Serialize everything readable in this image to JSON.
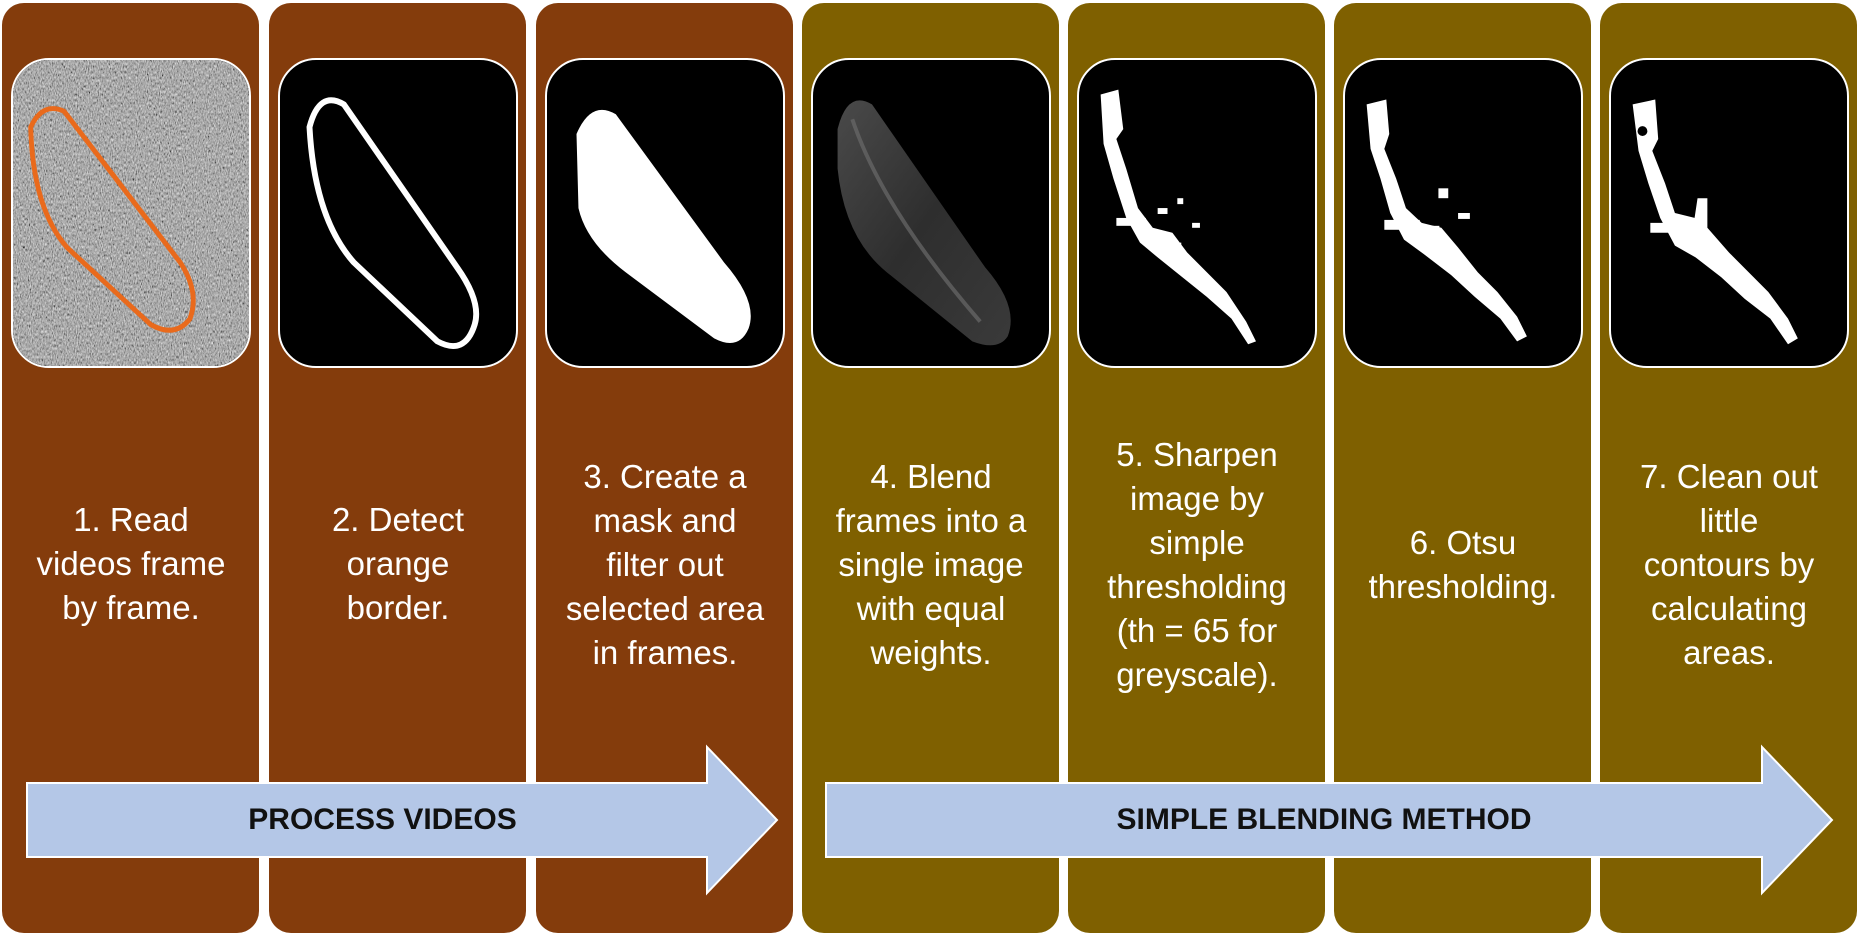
{
  "colors": {
    "process": "#843c0c",
    "blending": "#7f6000",
    "arrow_fill": "#b4c7e7",
    "arrow_stroke": "#ffffff",
    "outline": "#e96a1c"
  },
  "steps": [
    {
      "caption": "1. Read\nvideos frame\nby frame.",
      "image": "noisy-frame-with-orange-outline"
    },
    {
      "caption": "2. Detect\norange\nborder.",
      "image": "white-outline-mask"
    },
    {
      "caption": "3. Create a\nmask and\nfilter out\nselected area\nin frames.",
      "image": "filled-white-mask"
    },
    {
      "caption": "4. Blend\nframes into a\nsingle image\nwith equal\nweights.",
      "image": "blended-grey-region"
    },
    {
      "caption": "5. Sharpen\nimage by\nsimple\nthresholding\n(th = 65 for\ngreyscale).",
      "image": "thresholded-vessel"
    },
    {
      "caption": "6. Otsu\nthresholding.",
      "image": "otsu-vessel"
    },
    {
      "caption": "7. Clean out\nlittle\ncontours by\ncalculating\nareas.",
      "image": "cleaned-vessel"
    }
  ],
  "arrows": [
    {
      "label": "PROCESS VIDEOS"
    },
    {
      "label": "SIMPLE BLENDING METHOD"
    }
  ]
}
